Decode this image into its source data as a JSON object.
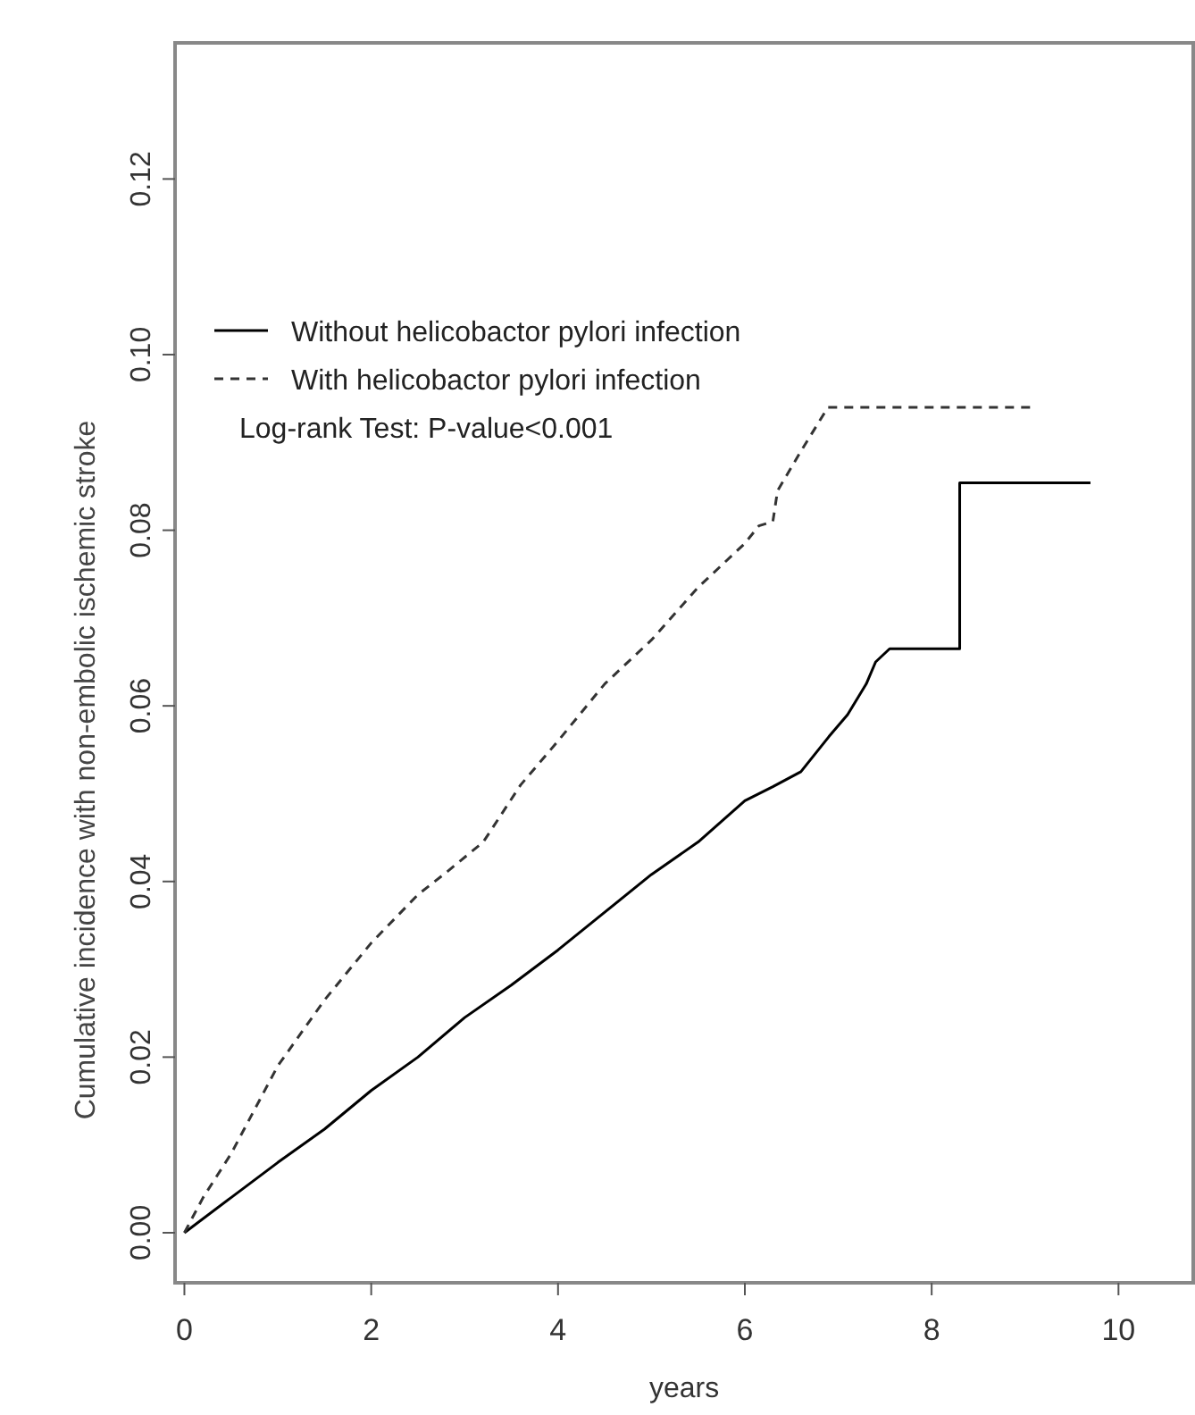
{
  "chart_data": {
    "type": "line",
    "xlabel": "years",
    "ylabel": "Cumulative incidence with non-embolic ischemic stroke",
    "xlim": [
      -0.1,
      10.8
    ],
    "ylim": [
      -0.0057,
      0.1355
    ],
    "xticks": [
      0,
      2,
      4,
      6,
      8,
      10
    ],
    "yticks": [
      {
        "value": 0,
        "label": "0.00"
      },
      0.02,
      0.04,
      0.06,
      0.08,
      {
        "value": 0.1,
        "label": "0.10"
      },
      0.12
    ],
    "grid": false,
    "legend": "top left",
    "annotations": [
      "Log-rank Test: P-value<0.001"
    ],
    "series": [
      {
        "name": "Without helicobactor pylori infection",
        "color": "#000000",
        "line_style": "solid",
        "x": [
          0,
          0.5,
          1,
          1.5,
          2,
          2.5,
          3,
          3.5,
          4,
          4.5,
          5,
          5.5,
          6,
          6.3,
          6.6,
          6.9,
          7.1,
          7.3,
          7.4,
          7.55,
          8.3,
          8.3,
          9.7
        ],
        "values": [
          0,
          0.004,
          0.008,
          0.0118,
          0.0162,
          0.02,
          0.0245,
          0.0282,
          0.0322,
          0.0365,
          0.0408,
          0.0445,
          0.0492,
          0.0508,
          0.0525,
          0.0565,
          0.059,
          0.0625,
          0.065,
          0.0665,
          0.0665,
          0.0854,
          0.0854
        ]
      },
      {
        "name": "With helicobactor pylori infection",
        "color": "#333333",
        "line_style": "dashed",
        "x": [
          0,
          0.2,
          0.5,
          1,
          1.5,
          2,
          2.5,
          2.8,
          3.2,
          3.6,
          4,
          4.5,
          5,
          5.5,
          6,
          6.15,
          6.3,
          6.35,
          6.6,
          6.89,
          9.12
        ],
        "values": [
          0,
          0.004,
          0.009,
          0.019,
          0.0265,
          0.033,
          0.0385,
          0.041,
          0.0445,
          0.051,
          0.056,
          0.0625,
          0.0675,
          0.0735,
          0.0785,
          0.0805,
          0.081,
          0.0845,
          0.089,
          0.094,
          0.094
        ]
      }
    ]
  }
}
